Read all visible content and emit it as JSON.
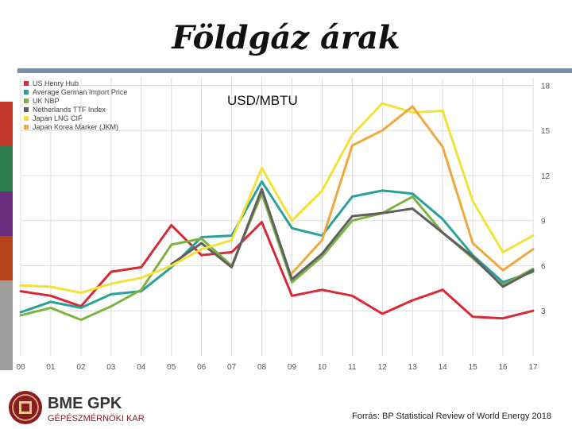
{
  "slide": {
    "title": "Földgáz árak",
    "source": "Forrás: BP Statistical Review of World Energy 2018",
    "stripe_colors": [
      "#c0392b",
      "#2e7d4f",
      "#6a2c7d",
      "#b5451b",
      "#9e9e9e",
      "#9e9e9e"
    ]
  },
  "logo": {
    "text": "BME GPK",
    "subtext": "GÉPÉSZMÉRNÖKI KAR",
    "emblem": "crest-icon"
  },
  "chart_data": {
    "type": "line",
    "title": "USD/MBTU",
    "categories": [
      "00",
      "01",
      "02",
      "03",
      "04",
      "05",
      "06",
      "07",
      "08",
      "09",
      "10",
      "11",
      "12",
      "13",
      "14",
      "15",
      "16",
      "17"
    ],
    "yticks": [
      3,
      6,
      9,
      12,
      15,
      18
    ],
    "ylim": [
      0,
      18.5
    ],
    "grid": true,
    "legend_position": "top-left",
    "series": [
      {
        "name": "US Henry Hub",
        "color": "#d62a37",
        "values": [
          4.3,
          4.0,
          3.3,
          5.6,
          5.9,
          8.7,
          6.7,
          6.9,
          8.9,
          4.0,
          4.4,
          4.0,
          2.8,
          3.7,
          4.4,
          2.6,
          2.5,
          3.0
        ]
      },
      {
        "name": "Average German Import Price",
        "color": "#2aa198",
        "values": [
          2.9,
          3.6,
          3.2,
          4.1,
          4.3,
          5.9,
          7.9,
          8.0,
          11.6,
          8.5,
          8.0,
          10.6,
          11.0,
          10.8,
          9.1,
          6.7,
          4.9,
          5.6
        ]
      },
      {
        "name": "UK NBP",
        "color": "#7cb342",
        "values": [
          2.7,
          3.2,
          2.4,
          3.3,
          4.4,
          7.4,
          7.8,
          6.0,
          10.8,
          4.9,
          6.6,
          9.0,
          9.5,
          10.6,
          8.2,
          6.5,
          4.7,
          5.8
        ]
      },
      {
        "name": "Netherlands TTF Index",
        "color": "#5f5f5f",
        "values": [
          null,
          null,
          null,
          null,
          null,
          6.1,
          7.5,
          5.9,
          11.1,
          5.1,
          6.8,
          9.3,
          9.5,
          9.8,
          8.2,
          6.6,
          4.6,
          5.7
        ]
      },
      {
        "name": "Japan LNG CIF",
        "color": "#f2e13a",
        "values": [
          4.7,
          4.6,
          4.2,
          4.8,
          5.2,
          6.0,
          7.1,
          7.7,
          12.5,
          9.0,
          11.0,
          14.7,
          16.8,
          16.2,
          16.3,
          10.3,
          6.9,
          8.0
        ]
      },
      {
        "name": "Japan Korea Marker (JKM)",
        "color": "#eea83d",
        "values": [
          null,
          null,
          null,
          null,
          null,
          null,
          null,
          null,
          null,
          5.5,
          7.7,
          14.0,
          15.0,
          16.6,
          13.9,
          7.5,
          5.7,
          7.1
        ]
      }
    ]
  }
}
